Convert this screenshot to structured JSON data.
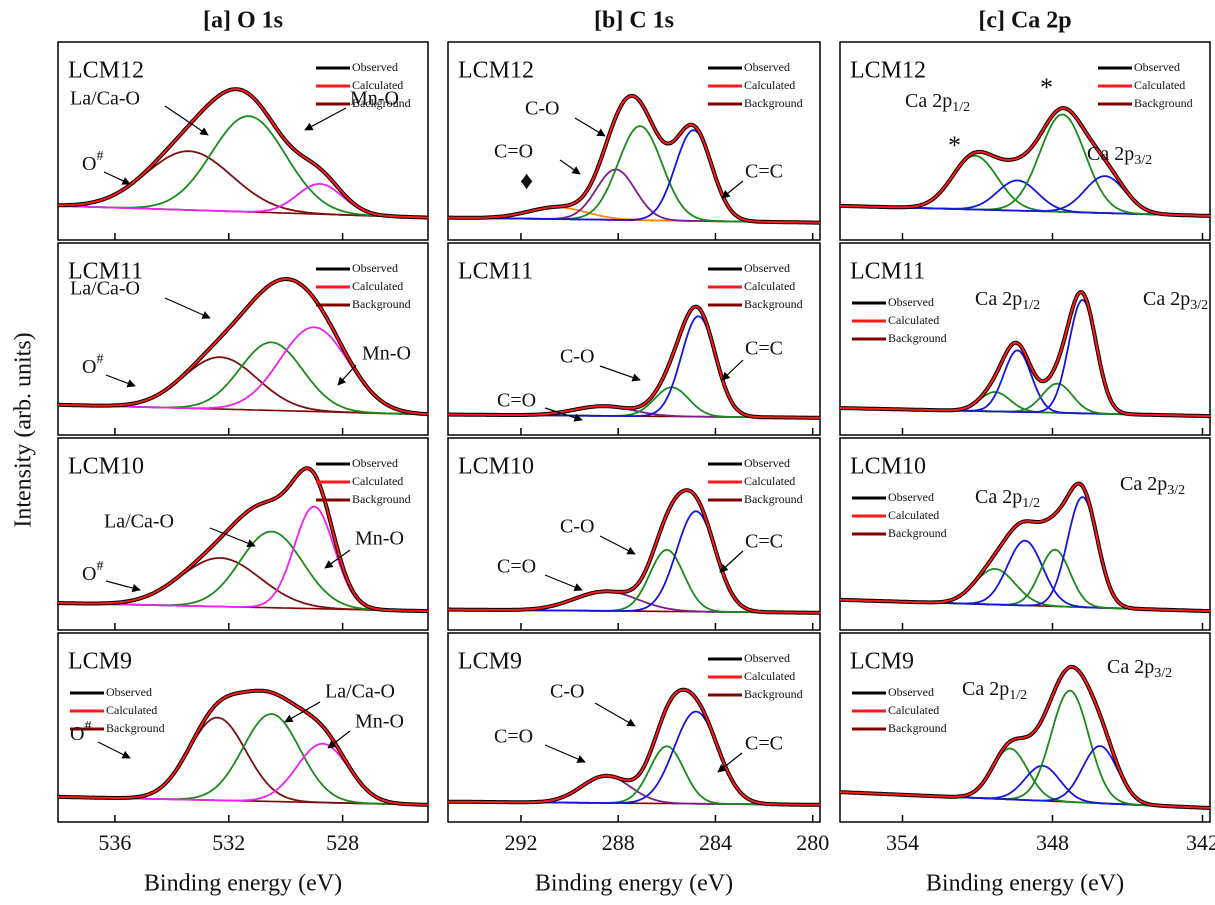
{
  "chart_data": {
    "type": "xps-panels",
    "y_label": "Intensity (arb. units)",
    "ylim": [
      0,
      100
    ],
    "columns": [
      {
        "title": "[a] O 1s",
        "x_label": "Binding energy (eV)",
        "xlim": [
          538,
          525
        ],
        "xticks": [
          536,
          532,
          528
        ],
        "panels": [
          {
            "label": "LCM12",
            "legend": "upper right",
            "series": [
              {
                "name": "Observed",
                "color": "#000000"
              },
              {
                "name": "Calculated",
                "color": "#ff1a1a"
              },
              {
                "name": "Background",
                "color": "#800000",
                "values": [
                  12,
                  5
                ]
              }
            ],
            "peaks": [
              {
                "color": "#7a1010",
                "center": 533.4,
                "height": 35,
                "width": 1.5
              },
              {
                "color": "#1a8a1a",
                "center": 531.3,
                "height": 57,
                "width": 1.3
              },
              {
                "color": "#ee22ee",
                "center": 528.8,
                "height": 18,
                "width": 0.8
              }
            ],
            "annotations": [
              "La/Ca-O",
              {
                "text": "O",
                "sup": "#"
              },
              "Mn-O"
            ]
          },
          {
            "label": "LCM11",
            "legend": "upper right",
            "series": [
              {
                "name": "Observed",
                "color": "#000000"
              },
              {
                "name": "Calculated",
                "color": "#ff1a1a"
              },
              {
                "name": "Background",
                "color": "#800000",
                "values": [
                  10,
                  4
                ]
              }
            ],
            "peaks": [
              {
                "color": "#7a1010",
                "center": 532.3,
                "height": 32,
                "width": 1.3
              },
              {
                "color": "#1a8a1a",
                "center": 530.5,
                "height": 42,
                "width": 1.1
              },
              {
                "color": "#ee22ee",
                "center": 529.0,
                "height": 52,
                "width": 1.2
              }
            ],
            "annotations": [
              "La/Ca-O",
              {
                "text": "O",
                "sup": "#"
              },
              "Mn-O"
            ]
          },
          {
            "label": "LCM10",
            "legend": "upper right",
            "series": [
              {
                "name": "Observed",
                "color": "#000000"
              },
              {
                "name": "Calculated",
                "color": "#ff1a1a"
              },
              {
                "name": "Background",
                "color": "#800000",
                "values": [
                  8,
                  3
                ]
              }
            ],
            "peaks": [
              {
                "color": "#7a1010",
                "center": 532.3,
                "height": 30,
                "width": 1.4
              },
              {
                "color": "#1a8a1a",
                "center": 530.5,
                "height": 47,
                "width": 1.1
              },
              {
                "color": "#ee22ee",
                "center": 529.0,
                "height": 63,
                "width": 0.7
              }
            ],
            "annotations": [
              "La/Ca-O",
              {
                "text": "O",
                "sup": "#"
              },
              "Mn-O"
            ]
          },
          {
            "label": "LCM9",
            "legend": "left",
            "series": [
              {
                "name": "Observed",
                "color": "#000000"
              },
              {
                "name": "Calculated",
                "color": "#ff1a1a"
              },
              {
                "name": "Background",
                "color": "#800000",
                "values": [
                  7,
                  2
                ]
              }
            ],
            "peaks": [
              {
                "color": "#7a1010",
                "center": 532.4,
                "height": 52,
                "width": 1.0
              },
              {
                "color": "#1a8a1a",
                "center": 530.5,
                "height": 55,
                "width": 1.0
              },
              {
                "color": "#ee22ee",
                "center": 528.7,
                "height": 37,
                "width": 0.9
              }
            ],
            "annotations": [
              {
                "text": "O",
                "sup": "#"
              },
              "La/Ca-O",
              "Mn-O"
            ]
          }
        ]
      },
      {
        "title": "[b] C 1s",
        "x_label": "Binding energy (eV)",
        "xlim": [
          295,
          279.7
        ],
        "xticks": [
          292,
          288,
          284,
          280
        ],
        "panels": [
          {
            "label": "LCM12",
            "legend": "upper right",
            "series": [
              {
                "name": "Observed",
                "color": "#000000"
              },
              {
                "name": "Calculated",
                "color": "#ff1a1a"
              },
              {
                "name": "Background",
                "color": "#800000",
                "values": [
                  5,
                  2
                ]
              }
            ],
            "peaks": [
              {
                "color": "#ff8c00",
                "center": 290.5,
                "height": 7,
                "width": 1.2
              },
              {
                "color": "#7a1f8a",
                "center": 288.1,
                "height": 30,
                "width": 0.8
              },
              {
                "color": "#1a8a1a",
                "center": 287.1,
                "height": 56,
                "width": 0.9
              },
              {
                "color": "#1515e0",
                "center": 284.9,
                "height": 54,
                "width": 0.75
              }
            ],
            "annotations": [
              "♦",
              "C=O",
              "C-O",
              "C=C"
            ]
          },
          {
            "label": "LCM11",
            "legend": "upper right",
            "series": [
              {
                "name": "Observed",
                "color": "#000000"
              },
              {
                "name": "Calculated",
                "color": "#ff1a1a"
              },
              {
                "name": "Background",
                "color": "#800000",
                "values": [
                  4,
                  2
                ]
              }
            ],
            "peaks": [
              {
                "color": "#7a1f8a",
                "center": 288.6,
                "height": 6,
                "width": 1.2
              },
              {
                "color": "#1a8a1a",
                "center": 285.8,
                "height": 18,
                "width": 0.7
              },
              {
                "color": "#1515e0",
                "center": 284.7,
                "height": 62,
                "width": 0.7
              }
            ],
            "annotations": [
              "C=O",
              "C-O",
              "C=C"
            ]
          },
          {
            "label": "LCM10",
            "legend": "upper right",
            "series": [
              {
                "name": "Observed",
                "color": "#000000"
              },
              {
                "name": "Calculated",
                "color": "#ff1a1a"
              },
              {
                "name": "Background",
                "color": "#800000",
                "values": [
                  4,
                  2
                ]
              }
            ],
            "peaks": [
              {
                "color": "#7a1f8a",
                "center": 288.5,
                "height": 12,
                "width": 1.3
              },
              {
                "color": "#1a8a1a",
                "center": 286.0,
                "height": 38,
                "width": 0.7
              },
              {
                "color": "#1515e0",
                "center": 284.8,
                "height": 62,
                "width": 0.8
              }
            ],
            "annotations": [
              "C-O",
              "C=O",
              "C=C"
            ]
          },
          {
            "label": "LCM9",
            "legend": "upper right",
            "series": [
              {
                "name": "Observed",
                "color": "#000000"
              },
              {
                "name": "Calculated",
                "color": "#ff1a1a"
              },
              {
                "name": "Background",
                "color": "#800000",
                "values": [
                  4,
                  2
                ]
              }
            ],
            "peaks": [
              {
                "color": "#7a1f8a",
                "center": 288.5,
                "height": 17,
                "width": 1.0
              },
              {
                "color": "#1a8a1a",
                "center": 286.0,
                "height": 36,
                "width": 0.7
              },
              {
                "color": "#1515e0",
                "center": 284.8,
                "height": 58,
                "width": 0.9
              }
            ],
            "annotations": [
              "C-O",
              "C=O",
              "C=C"
            ]
          }
        ]
      },
      {
        "title": "[c] Ca 2p",
        "x_label": "Binding energy (eV)",
        "xlim": [
          356.5,
          341.7
        ],
        "xticks": [
          354,
          348,
          342
        ],
        "panels": [
          {
            "label": "LCM12",
            "legend": "upper right",
            "series": [
              {
                "name": "Observed",
                "color": "#000000"
              },
              {
                "name": "Calculated",
                "color": "#ff1a1a"
              },
              {
                "name": "Background",
                "color": "#800000",
                "values": [
                  12,
                  6
                ]
              }
            ],
            "peaks": [
              {
                "color": "#1a8a1a",
                "center": 351.1,
                "height": 32,
                "width": 0.9
              },
              {
                "color": "#1515e0",
                "center": 349.4,
                "height": 18,
                "width": 0.8
              },
              {
                "color": "#1a8a1a",
                "center": 347.6,
                "height": 58,
                "width": 0.9
              },
              {
                "color": "#1515e0",
                "center": 345.9,
                "height": 22,
                "width": 0.8
              }
            ],
            "annotations": [
              "*",
              "*",
              {
                "text": "Ca 2p",
                "sub": "1/2"
              },
              {
                "text": "Ca 2p",
                "sub": "3/2"
              }
            ]
          },
          {
            "label": "LCM11",
            "legend": "left",
            "series": [
              {
                "name": "Observed",
                "color": "#000000"
              },
              {
                "name": "Calculated",
                "color": "#ff1a1a"
              },
              {
                "name": "Background",
                "color": "#800000",
                "values": [
                  8,
                  3
                ]
              }
            ],
            "peaks": [
              {
                "color": "#1a8a1a",
                "center": 350.3,
                "height": 12,
                "width": 0.6
              },
              {
                "color": "#1515e0",
                "center": 349.4,
                "height": 38,
                "width": 0.55
              },
              {
                "color": "#1a8a1a",
                "center": 347.8,
                "height": 18,
                "width": 0.6
              },
              {
                "color": "#1515e0",
                "center": 346.8,
                "height": 70,
                "width": 0.55
              }
            ],
            "annotations": [
              {
                "text": "Ca 2p",
                "sub": "1/2"
              },
              {
                "text": "Ca 2p",
                "sub": "3/2"
              }
            ]
          },
          {
            "label": "LCM10",
            "legend": "left",
            "series": [
              {
                "name": "Observed",
                "color": "#000000"
              },
              {
                "name": "Calculated",
                "color": "#ff1a1a"
              },
              {
                "name": "Background",
                "color": "#800000",
                "values": [
                  10,
                  3
                ]
              }
            ],
            "peaks": [
              {
                "color": "#1a8a1a",
                "center": 350.3,
                "height": 22,
                "width": 0.8
              },
              {
                "color": "#1515e0",
                "center": 349.1,
                "height": 40,
                "width": 0.7
              },
              {
                "color": "#1a8a1a",
                "center": 347.9,
                "height": 35,
                "width": 0.6
              },
              {
                "color": "#1515e0",
                "center": 346.8,
                "height": 68,
                "width": 0.6
              }
            ],
            "annotations": [
              {
                "text": "Ca 2p",
                "sub": "1/2"
              },
              {
                "text": "Ca 2p",
                "sub": "3/2"
              }
            ]
          },
          {
            "label": "LCM9",
            "legend": "left",
            "series": [
              {
                "name": "Observed",
                "color": "#000000"
              },
              {
                "name": "Calculated",
                "color": "#ff1a1a"
              },
              {
                "name": "Background",
                "color": "#800000",
                "values": [
                  10,
                  0
                ]
              }
            ],
            "peaks": [
              {
                "color": "#1a8a1a",
                "center": 349.7,
                "height": 32,
                "width": 0.7
              },
              {
                "color": "#1515e0",
                "center": 348.4,
                "height": 22,
                "width": 0.7
              },
              {
                "color": "#1a8a1a",
                "center": 347.3,
                "height": 70,
                "width": 0.75
              },
              {
                "color": "#1515e0",
                "center": 346.1,
                "height": 36,
                "width": 0.7
              }
            ],
            "annotations": [
              {
                "text": "Ca 2p",
                "sub": "1/2"
              },
              {
                "text": "Ca 2p",
                "sub": "3/2"
              }
            ]
          }
        ]
      }
    ]
  }
}
